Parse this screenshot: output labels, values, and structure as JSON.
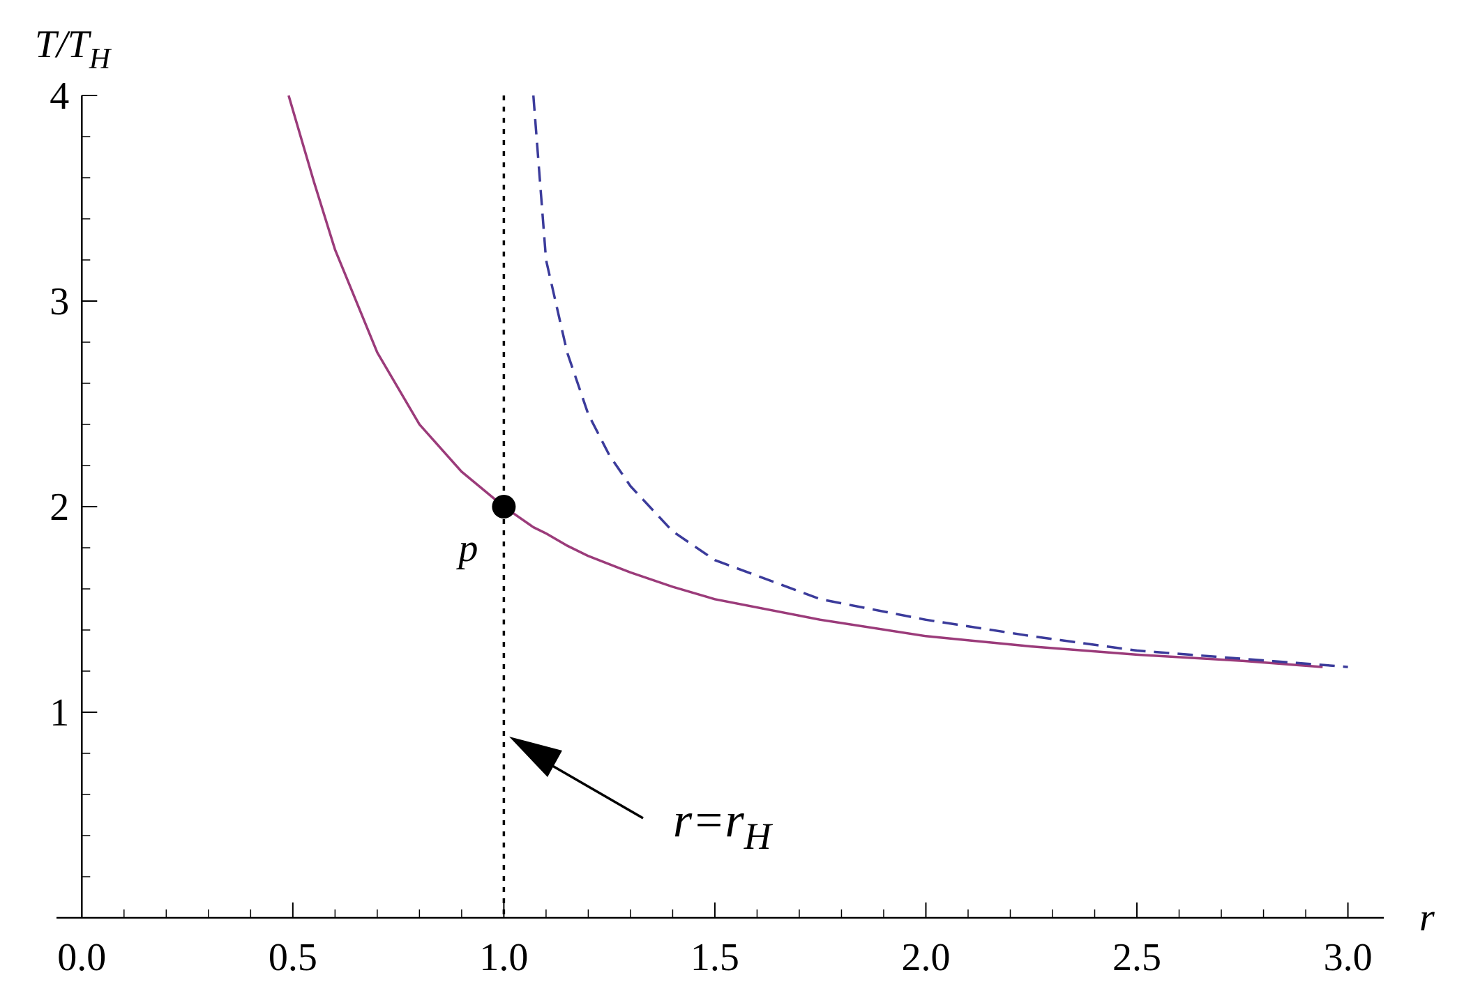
{
  "chart_data": {
    "type": "line",
    "ylabel": {
      "text": "T/T",
      "subscript": "H"
    },
    "xlabel": "r",
    "x": [
      0.49,
      0.55,
      0.6,
      0.7,
      0.8,
      0.9,
      1.0,
      1.07,
      1.1,
      1.15,
      1.2,
      1.25,
      1.3,
      1.4,
      1.5,
      1.75,
      2.0,
      2.25,
      2.5,
      2.75,
      2.94,
      3.0
    ],
    "series": [
      {
        "color": "#9b3b7a",
        "dash": false,
        "values": [
          4.0,
          3.58,
          3.25,
          2.75,
          2.4,
          2.17,
          2.0,
          1.9,
          1.87,
          1.81,
          1.76,
          1.72,
          1.68,
          1.61,
          1.55,
          1.45,
          1.37,
          1.32,
          1.28,
          1.25,
          1.22,
          null
        ]
      },
      {
        "color": "#3b3b9b",
        "dash": true,
        "values": [
          null,
          null,
          null,
          null,
          null,
          null,
          null,
          4.0,
          3.2,
          2.75,
          2.45,
          2.25,
          2.1,
          1.88,
          1.74,
          1.55,
          1.45,
          1.37,
          1.3,
          1.26,
          1.23,
          1.22
        ]
      }
    ],
    "vline": 1.0,
    "point": {
      "x": 1.0,
      "y": 2.0,
      "label": "p"
    },
    "annotation": {
      "text": "r=r",
      "subscript": "H"
    },
    "xlim": [
      -0.06,
      3.085
    ],
    "ylim": [
      0,
      4
    ],
    "xticks": [
      {
        "value": 0,
        "label": "0.0"
      },
      0.5,
      {
        "value": 1,
        "label": "1.0"
      },
      1.5,
      {
        "value": 2,
        "label": "2.0"
      },
      2.5,
      {
        "value": 3,
        "label": "3.0"
      }
    ],
    "yticks": [
      1,
      2,
      3,
      4
    ]
  }
}
